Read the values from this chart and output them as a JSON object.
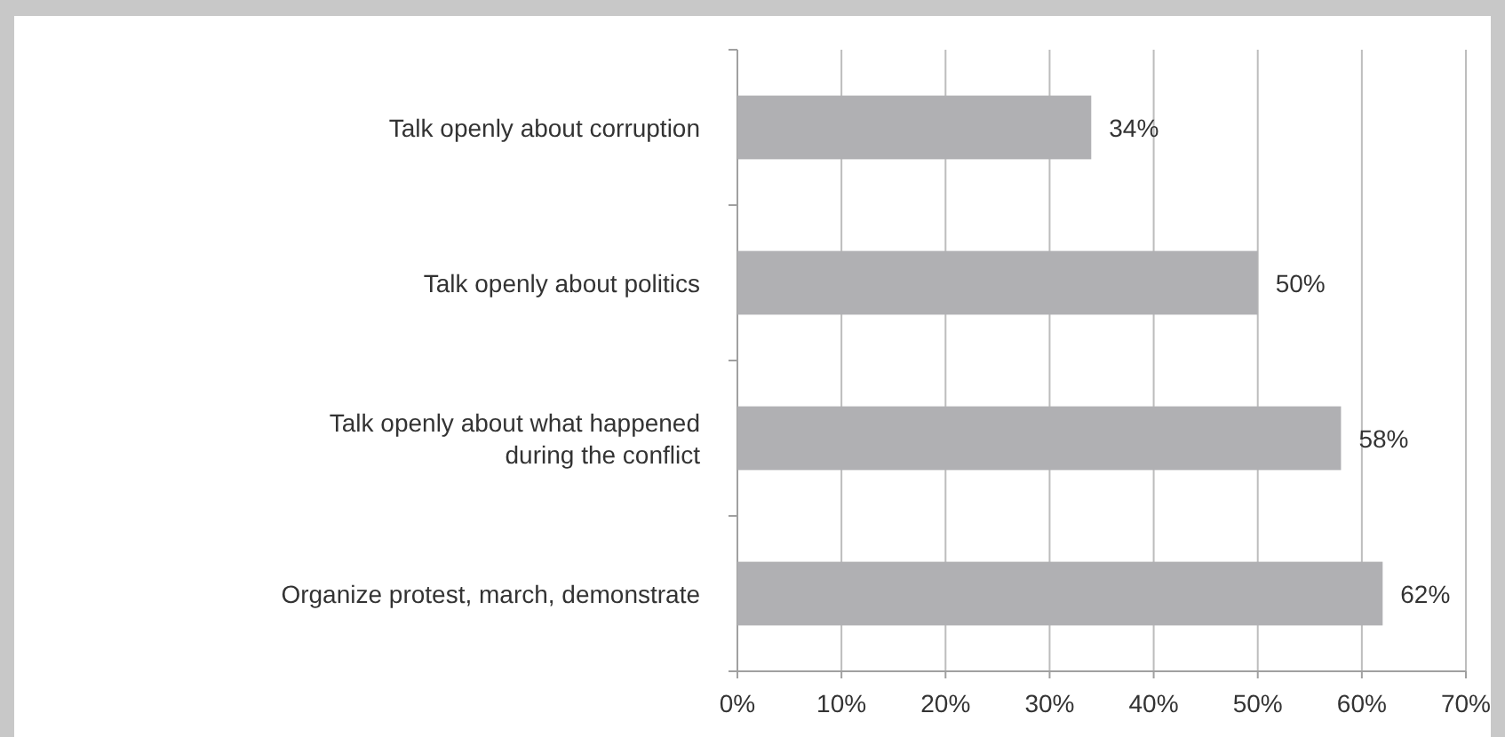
{
  "chart_data": {
    "type": "bar",
    "orientation": "horizontal",
    "categories": [
      "Talk openly about corruption",
      "Talk openly about politics",
      "Talk openly about what happened\nduring the conflict",
      "Organize protest, march, demonstrate"
    ],
    "values": [
      34,
      50,
      58,
      62
    ],
    "value_labels": [
      "34%",
      "50%",
      "58%",
      "62%"
    ],
    "color": "#b0b0b3",
    "xlim": [
      0,
      70
    ],
    "xticks": [
      {
        "value": 0,
        "label": "0%"
      },
      {
        "value": 10,
        "label": "10%"
      },
      {
        "value": 20,
        "label": "20%"
      },
      {
        "value": 30,
        "label": "30%"
      },
      {
        "value": 40,
        "label": "40%"
      },
      {
        "value": 50,
        "label": "50%"
      },
      {
        "value": 60,
        "label": "60%"
      },
      {
        "value": 70,
        "label": "70%"
      }
    ],
    "grid": "x"
  }
}
